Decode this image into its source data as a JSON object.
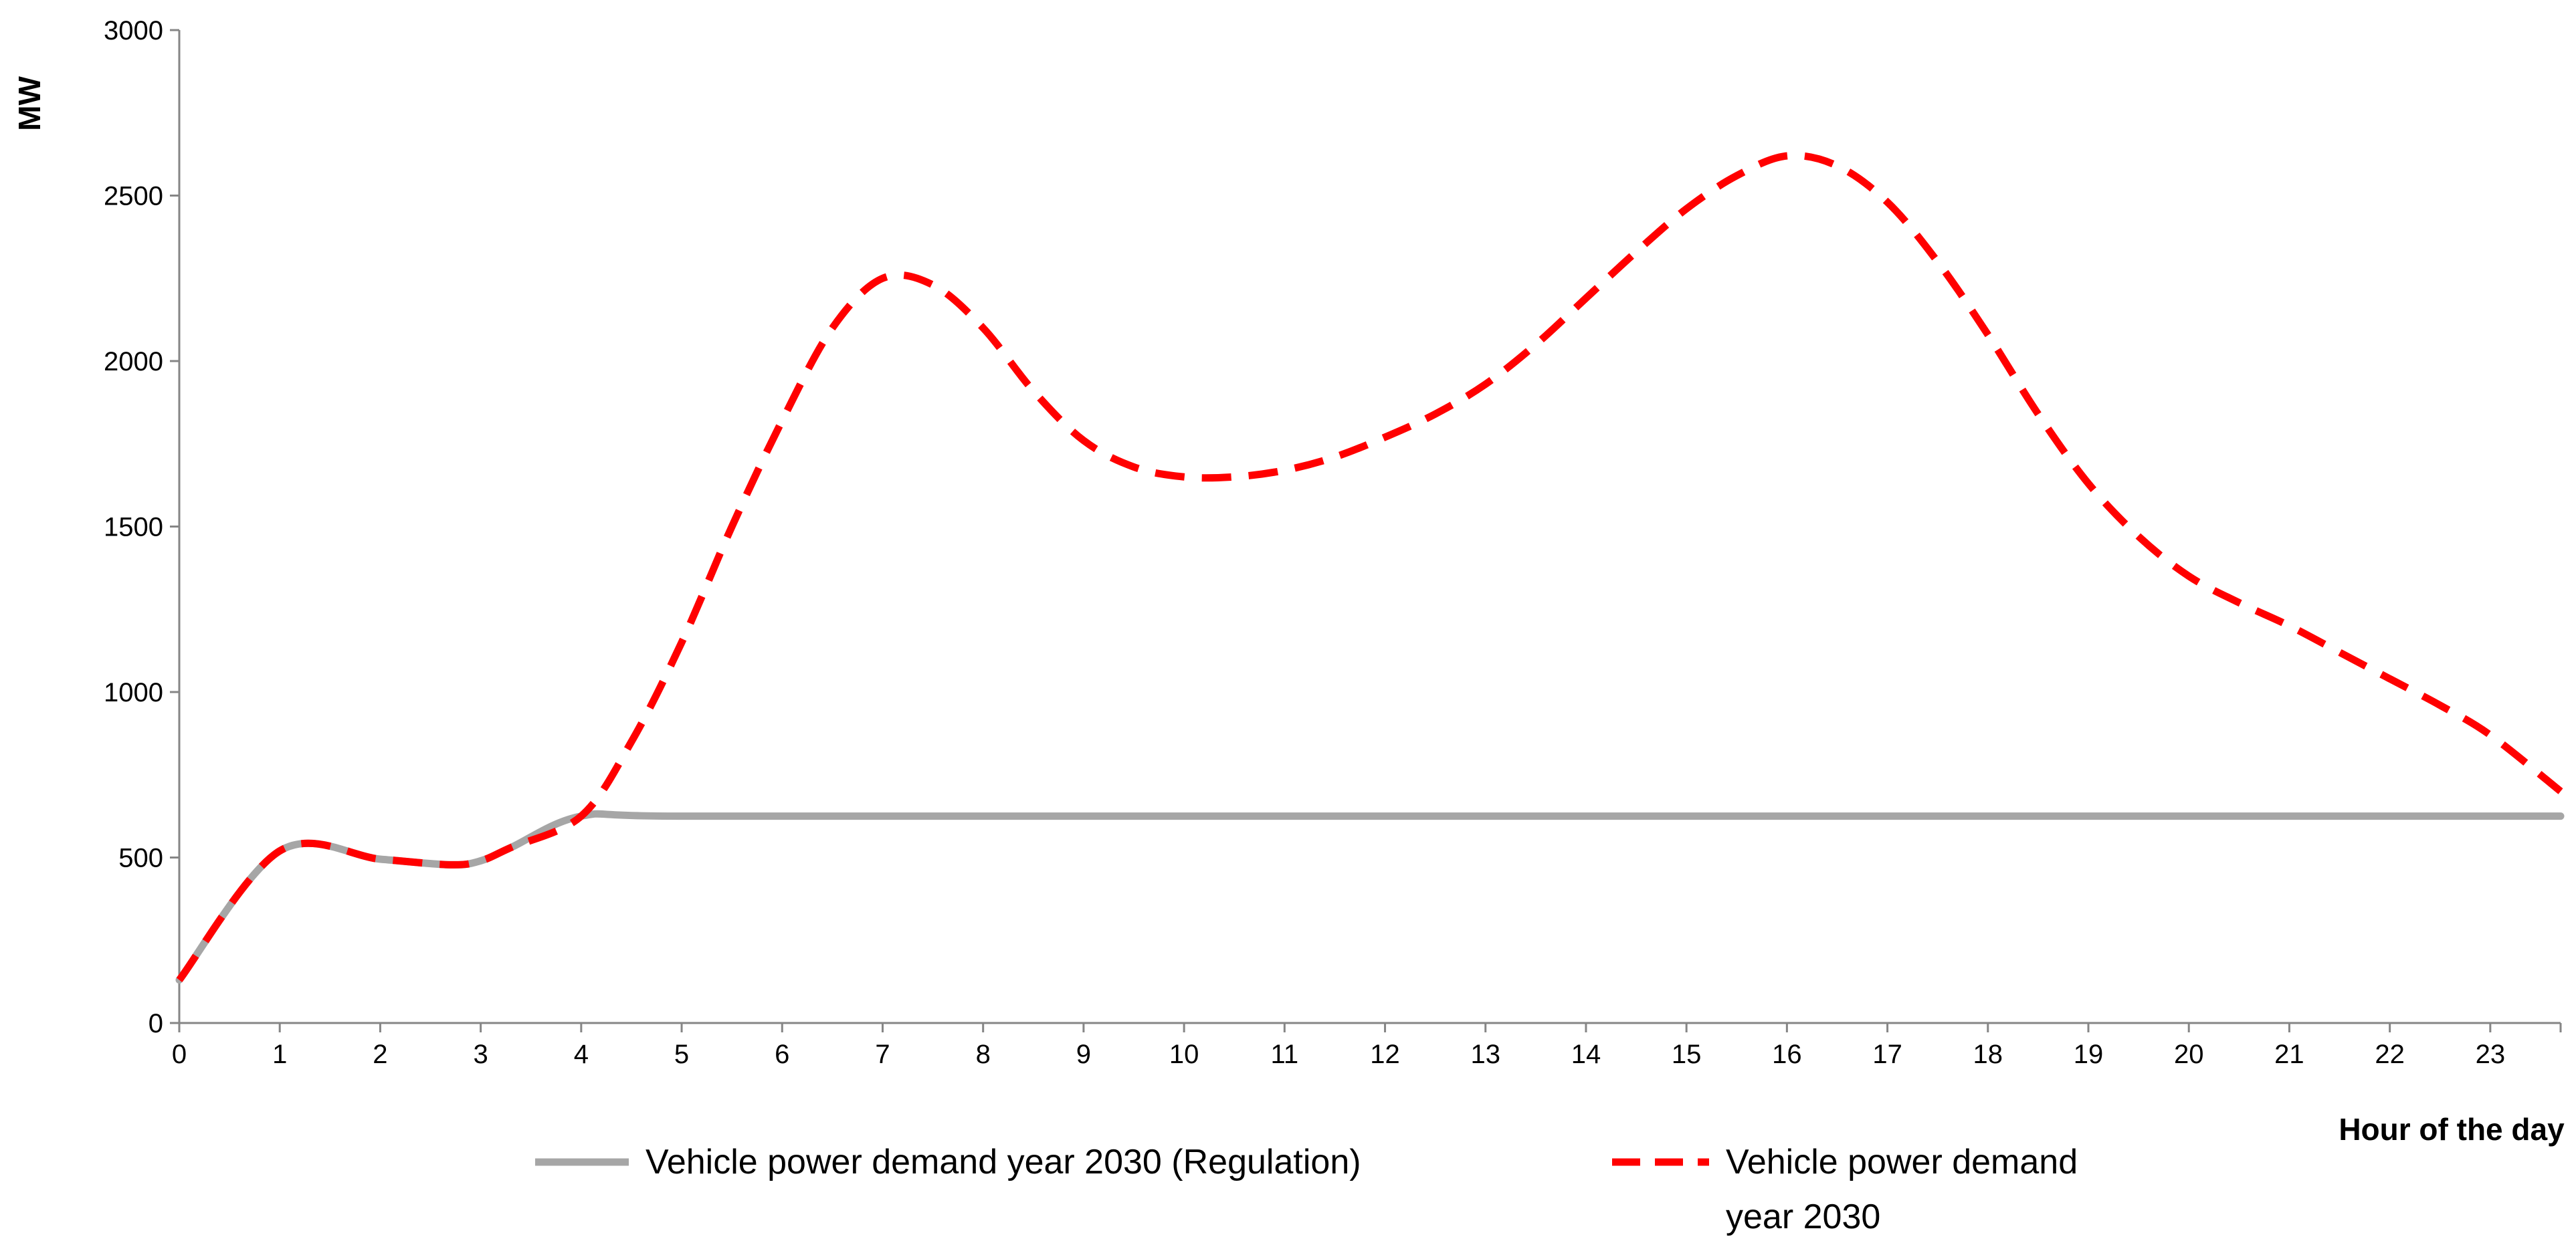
{
  "chart_data": {
    "type": "line",
    "title": "",
    "xlabel": "Hour of the day",
    "ylabel": "MW",
    "xlim": [
      0,
      23.7
    ],
    "ylim": [
      0,
      3000
    ],
    "x_ticks": [
      "0",
      "1",
      "2",
      "3",
      "4",
      "5",
      "6",
      "7",
      "8",
      "9",
      "10",
      "11",
      "12",
      "13",
      "14",
      "15",
      "16",
      "17",
      "18",
      "19",
      "20",
      "21",
      "22",
      "23"
    ],
    "y_ticks": [
      "0",
      "500",
      "1000",
      "1500",
      "2000",
      "2500",
      "3000"
    ],
    "grid": false,
    "legend_position": "bottom",
    "series": [
      {
        "name": "Vehicle power demand year 2030 (Regulation)",
        "color": "#A6A6A6",
        "style": "solid",
        "x": [
          0,
          1,
          2,
          2.7,
          3,
          3.3,
          4,
          5,
          10,
          15,
          20,
          23.7
        ],
        "values": [
          130,
          520,
          495,
          478,
          490,
          530,
          625,
          625,
          625,
          625,
          625,
          625
        ]
      },
      {
        "name": "Vehicle power demand year 2030",
        "color": "#FF0000",
        "style": "dashed",
        "x": [
          0,
          1,
          2,
          2.7,
          3,
          3.3,
          4,
          4.5,
          5,
          5.5,
          6,
          6.5,
          7,
          7.5,
          8,
          8.5,
          9,
          9.5,
          10,
          10.5,
          11,
          11.5,
          12,
          12.5,
          13,
          13.5,
          14,
          14.5,
          15,
          15.5,
          16,
          16.5,
          17,
          17.5,
          18,
          18.5,
          19,
          19.5,
          20,
          20.5,
          21,
          21.5,
          22,
          22.5,
          23,
          23.7
        ],
        "values": [
          130,
          520,
          495,
          478,
          490,
          530,
          625,
          850,
          1150,
          1500,
          1820,
          2100,
          2250,
          2230,
          2100,
          1910,
          1760,
          1680,
          1650,
          1650,
          1670,
          1710,
          1770,
          1840,
          1930,
          2050,
          2190,
          2330,
          2460,
          2560,
          2620,
          2590,
          2480,
          2300,
          2080,
          1840,
          1630,
          1470,
          1350,
          1270,
          1200,
          1120,
          1040,
          960,
          870,
          700
        ]
      }
    ],
    "legend": [
      {
        "label": "Vehicle power demand year 2030 (Regulation)",
        "lines": [
          "Vehicle power demand year 2030 (Regulation)"
        ]
      },
      {
        "label": "Vehicle power demand year 2030",
        "lines": [
          "Vehicle power demand",
          "year 2030"
        ]
      }
    ]
  }
}
